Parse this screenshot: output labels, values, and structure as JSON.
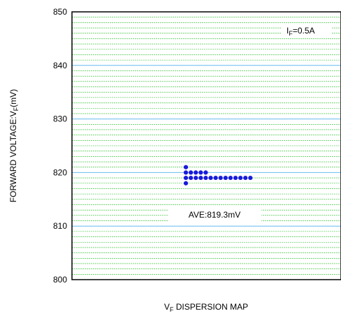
{
  "chart_data": {
    "type": "scatter",
    "title": "",
    "xlabel": {
      "main": "V",
      "sub": "F",
      "rest": " DISPERSION MAP"
    },
    "ylabel": {
      "main": "FORWARD VOLTAGE:V",
      "sub": "F",
      "rest": "(mV)"
    },
    "ylim": [
      800,
      850
    ],
    "yticks": [
      "800",
      "810",
      "820",
      "830",
      "840",
      "850"
    ],
    "minor_grid_step": 1,
    "major_grid_step": 10,
    "grid": true,
    "colors": {
      "minor_grid": "#22bb22",
      "major_grid": "#66bbee",
      "points": "#1a1adb",
      "frame": "#000000"
    },
    "condition_label": {
      "main": "I",
      "sub": "F",
      "rest": "=0.5A"
    },
    "average_label": "AVE:819.3mV",
    "points_columns": [
      {
        "col": 0,
        "values": [
          818,
          819,
          820,
          821
        ]
      },
      {
        "col": 1,
        "values": [
          819,
          820
        ]
      },
      {
        "col": 2,
        "values": [
          819,
          820
        ]
      },
      {
        "col": 3,
        "values": [
          819,
          820
        ]
      },
      {
        "col": 4,
        "values": [
          819,
          820
        ]
      },
      {
        "col": 5,
        "values": [
          819
        ]
      },
      {
        "col": 6,
        "values": [
          819
        ]
      },
      {
        "col": 7,
        "values": [
          819
        ]
      },
      {
        "col": 8,
        "values": [
          819
        ]
      },
      {
        "col": 9,
        "values": [
          819
        ]
      },
      {
        "col": 10,
        "values": [
          819
        ]
      },
      {
        "col": 11,
        "values": [
          819
        ]
      },
      {
        "col": 12,
        "values": [
          819
        ]
      },
      {
        "col": 13,
        "values": [
          819
        ]
      }
    ]
  }
}
